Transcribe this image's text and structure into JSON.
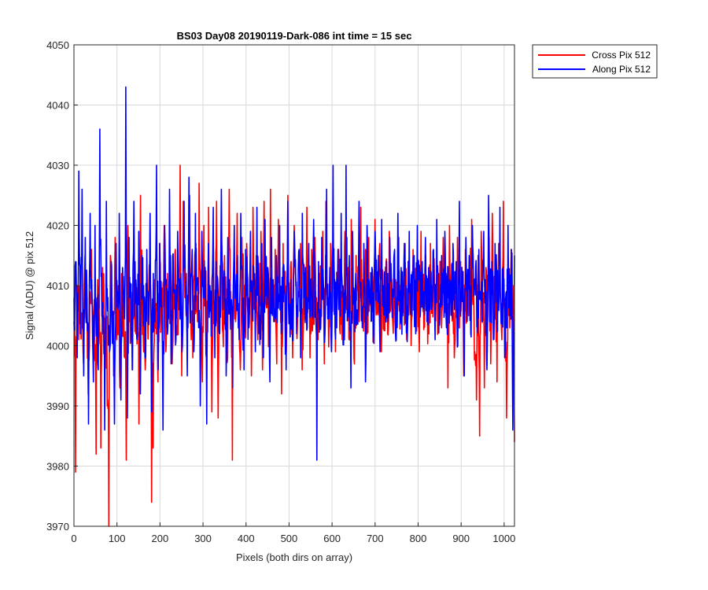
{
  "chart_data": {
    "type": "line",
    "title": "BS03 Day08 20190119-Dark-086 int time = 15 sec",
    "xlabel": "Pixels (both dirs on array)",
    "ylabel": "Signal (ADU) @ pix 512",
    "xlim": [
      0,
      1024
    ],
    "ylim": [
      3970,
      4050
    ],
    "xticks": [
      0,
      100,
      200,
      300,
      400,
      500,
      600,
      700,
      800,
      900,
      1000
    ],
    "yticks": [
      3970,
      3980,
      3990,
      4000,
      4010,
      4020,
      4030,
      4040,
      4050
    ],
    "grid": true,
    "legend_position": "outside-top-right",
    "series": [
      {
        "name": "Cross Pix 512",
        "color": "#ff0000",
        "mean": 4006,
        "values_sampled_every_8_pixels": [
          4008,
          3979,
          4010,
          4001,
          4012,
          4003,
          3997,
          4015,
          4006,
          3992,
          4009,
          4016,
          4003,
          3998,
          3982,
          4011,
          4005,
          3983,
          4013,
          4007,
          3999,
          3990,
          3970,
          4015,
          4008,
          3995,
          4018,
          4001,
          4010,
          3993,
          4012,
          4006,
          3998,
          3981,
          4020,
          4004,
          4009,
          3996,
          4014,
          4002,
          4007,
          3987,
          4025,
          4011,
          3999,
          3996,
          4013,
          4006,
          4021,
          3974,
          3983,
          4011,
          4002,
          3994,
          4017,
          4008,
          4003,
          4020,
          3999,
          4012,
          4005,
          4015,
          3997,
          4009,
          4016,
          4002,
          4010,
          4030,
          3995,
          4024,
          4008,
          4012,
          4003,
          4025,
          4001,
          3998,
          4011,
          4017,
          4004,
          4027,
          4006,
          3994,
          4020,
          4010,
          3999,
          4023,
          4007,
          3989,
          4014,
          4003,
          4024,
          3988,
          4010,
          4021,
          4002,
          4015,
          4006,
          3998,
          4026,
          4009,
          3981,
          4013,
          4004,
          4022,
          4007,
          3996,
          4018,
          4011,
          4003,
          4017,
          4008,
          4012,
          3995,
          4023,
          4006,
          4015,
          4001,
          4009,
          4019,
          3996,
          4024,
          4007,
          4013,
          4002,
          4026,
          4010,
          4004,
          4016,
          3997,
          4021,
          4008,
          3992,
          4017,
          4012,
          3999,
          4025,
          4006,
          4014,
          3998,
          4020,
          4011,
          4003,
          4009,
          4017,
          3996,
          4012,
          4005,
          4023,
          4009,
          3998,
          4016,
          4004,
          4018,
          4008,
          4001,
          4012,
          4006,
          4019,
          3997,
          4024,
          4010,
          4003,
          4017,
          4007,
          4014,
          3999,
          4011,
          4016,
          4002,
          4009,
          4005,
          4019,
          4006,
          4013,
          4001,
          4021,
          4008,
          3997,
          4015,
          4010,
          4004,
          4023,
          4011,
          4007,
          4016,
          4002,
          4018,
          4008,
          4013,
          4003,
          4021,
          4010,
          4006,
          4017,
          3999,
          4012,
          4007,
          4014,
          4002,
          4019,
          4009,
          4005,
          4015,
          4011,
          4003,
          4018,
          4008,
          4012,
          4006,
          4017,
          4001,
          4014,
          4009,
          4004,
          4016,
          4010,
          4007,
          4013,
          3999,
          4019,
          4011,
          4006,
          4015,
          4008,
          4002,
          4017,
          4010,
          4013,
          4005,
          4011,
          4007,
          4014,
          4003,
          4018,
          4009,
          4012,
          3993,
          4020,
          4006,
          4011,
          3998,
          4009,
          4018,
          4003,
          4014,
          4008,
          3995,
          4016,
          4010,
          4005,
          4013,
          4021,
          4007,
          3999,
          3991,
          4015,
          3985,
          4019,
          4008,
          3993,
          4013,
          4004,
          4018,
          3997,
          4022,
          4006,
          4012,
          3994,
          4017,
          4009,
          4001,
          4024,
          4006,
          3988,
          4014,
          4003,
          4016,
          4010,
          3984
        ]
      },
      {
        "name": "Along Pix 512",
        "color": "#0000ff",
        "mean": 4006,
        "values_sampled_every_8_pixels": [
          4004,
          4014,
          3998,
          4029,
          4002,
          4026,
          3995,
          4018,
          4009,
          3987,
          4022,
          4011,
          3994,
          4020,
          4005,
          3996,
          4036,
          4012,
          4002,
          3986,
          4024,
          4008,
          3999,
          4014,
          4003,
          3987,
          4017,
          4009,
          4022,
          3991,
          4013,
          4005,
          4043,
          3988,
          4018,
          4009,
          3996,
          4024,
          4007,
          4001,
          4019,
          3992,
          4015,
          4010,
          3998,
          4016,
          4006,
          4022,
          3989,
          4012,
          4004,
          4030,
          3996,
          4017,
          4008,
          3986,
          4020,
          4011,
          4003,
          4026,
          3997,
          4015,
          4009,
          4001,
          4019,
          4006,
          4012,
          4000,
          4024,
          4010,
          3995,
          4028,
          4005,
          4016,
          3999,
          4022,
          4011,
          4003,
          3990,
          4019,
          4008,
          4013,
          3987,
          4017,
          4010,
          4004,
          4023,
          3998,
          4014,
          4009,
          4002,
          4026,
          4006,
          4012,
          3995,
          4018,
          4011,
          4007,
          3993,
          4020,
          4009,
          4015,
          4001,
          4022,
          4008,
          3996,
          4016,
          4012,
          4003,
          4019,
          4007,
          4013,
          3999,
          4023,
          4010,
          4005,
          4017,
          3998,
          4021,
          4009,
          4012,
          3994,
          4018,
          4011,
          4004,
          4015,
          4007,
          4020,
          4002,
          4013,
          4009,
          3996,
          4024,
          4006,
          4011,
          4001,
          4019,
          4010,
          4006,
          4016,
          3998,
          4022,
          4008,
          4013,
          4003,
          4017,
          4011,
          4005,
          4021,
          4009,
          3981,
          4014,
          4006,
          4018,
          4010,
          4002,
          4026,
          4008,
          4013,
          3999,
          4030,
          4011,
          4004,
          4016,
          4007,
          4022,
          4010,
          4001,
          4030,
          4006,
          4015,
          3993,
          4019,
          4009,
          4012,
          4005,
          4024,
          4008,
          4003,
          4017,
          3994,
          4020,
          4011,
          4007,
          4013,
          4002,
          4019,
          4009,
          4015,
          3999,
          4021,
          4010,
          4006,
          4014,
          4004,
          4018,
          4011,
          4008,
          4016,
          4001,
          4022,
          4009,
          4013,
          4005,
          4017,
          4010,
          4003,
          4019,
          4007,
          4012,
          4015,
          4002,
          4020,
          4011,
          4006,
          4014,
          4009,
          4018,
          4004,
          4013,
          4010,
          4007,
          4016,
          4001,
          4021,
          4012,
          4005,
          4015,
          4009,
          4019,
          4003,
          4013,
          4011,
          4008,
          4017,
          4006,
          4014,
          4000,
          4024,
          4009,
          4012,
          3995,
          4018,
          4007,
          4015,
          4002,
          4020,
          4010,
          4013,
          4006,
          4016,
          4009,
          4004,
          4019,
          4011,
          3996,
          4025,
          4008,
          4014,
          4001,
          4017,
          4012,
          4006,
          4023,
          4007,
          4013,
          3998,
          4009,
          4020,
          4005,
          4016,
          3986,
          4015
        ]
      }
    ]
  }
}
